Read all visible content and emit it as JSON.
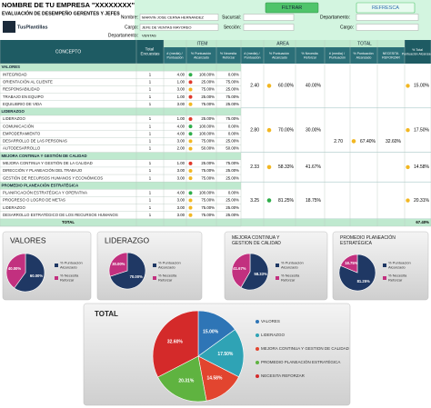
{
  "header": {
    "company": "NOMBRE DE TU EMPRESA \"XXXXXXXX\"",
    "subtitle": "EVALUACIÓN DE DESEMPEÑO GERENTES Y JEFES",
    "logo": "TusPlantillas"
  },
  "form": {
    "name_label": "Nombre:",
    "name": "MARVIN JOSE CERNA HERNANDEZ",
    "branch_label": "Sucursal:",
    "dept_label": "Departamento:",
    "position_label": "Cargo:",
    "position": "JEFE DE VENTAS MAYOREO",
    "section_label": "Sección:",
    "position_label_2": "Cargo:",
    "dept_label_2": "Departamento:",
    "dept": "VENTAS",
    "filter_button": "FILTRAR",
    "refresh_button": "REFRESCA"
  },
  "table": {
    "headers": {
      "concept": "CONCEPTO",
      "surveys": "Total Encuestas",
      "item": "ITEM",
      "area": "AREA",
      "total": "TOTAL",
      "score": "# (media) / Puntuación",
      "pct": "% Puntuación Alcanzado",
      "reinforce": "% Necesita Reforzar",
      "total_reinforce": "NECESITA REFORZAR",
      "total_pct": "% Total Puntuación Alcanzado"
    },
    "groups": [
      {
        "name": "VALORES",
        "area": {
          "score": "2.40",
          "pct": "60.00%",
          "reinforce": "40.00%"
        },
        "total_pct": "15.00%",
        "items": [
          {
            "concept": "INTEGRIDAD",
            "surveys": "1",
            "score": "4.00",
            "pct": "100.00%",
            "reinforce": "0.00%"
          },
          {
            "concept": "ORIENTACIÓN AL CLIENTE",
            "surveys": "1",
            "score": "1.00",
            "pct": "25.00%",
            "reinforce": "75.00%"
          },
          {
            "concept": "RESPONSABILIDAD",
            "surveys": "1",
            "score": "3.00",
            "pct": "75.00%",
            "reinforce": "25.00%"
          },
          {
            "concept": "TRABAJO EN EQUIPO",
            "surveys": "1",
            "score": "1.00",
            "pct": "25.00%",
            "reinforce": "75.00%"
          },
          {
            "concept": "EQUILIBRIO DE VIDA",
            "surveys": "1",
            "score": "3.00",
            "pct": "75.00%",
            "reinforce": "25.00%"
          }
        ]
      },
      {
        "name": "LIDERAZGO",
        "area": {
          "score": "2.80",
          "pct": "70.00%",
          "reinforce": "30.00%"
        },
        "total_pct": "17.50%",
        "items": [
          {
            "concept": "LIDERAZGO",
            "surveys": "1",
            "score": "1.00",
            "pct": "25.00%",
            "reinforce": "75.00%"
          },
          {
            "concept": "COMUNICACIÓN",
            "surveys": "1",
            "score": "4.00",
            "pct": "100.00%",
            "reinforce": "0.00%"
          },
          {
            "concept": "EMPODERAMIENTO",
            "surveys": "1",
            "score": "4.00",
            "pct": "100.00%",
            "reinforce": "0.00%"
          },
          {
            "concept": "DESARROLLO DE LAS PERSONAS",
            "surveys": "1",
            "score": "3.00",
            "pct": "75.00%",
            "reinforce": "25.00%"
          },
          {
            "concept": "AUTODESARROLLO",
            "surveys": "1",
            "score": "2.00",
            "pct": "50.00%",
            "reinforce": "50.00%"
          }
        ]
      },
      {
        "name": "MEJORA CONTINUA Y GESTIÓN DE CALIDAD",
        "area": {
          "score": "2.33",
          "pct": "58.33%",
          "reinforce": "41.67%"
        },
        "total_pct": "14.58%",
        "items": [
          {
            "concept": "MEJORA CONTINUA Y GESTIÓN DE LA CALIDAD",
            "surveys": "1",
            "score": "1.00",
            "pct": "25.00%",
            "reinforce": "75.00%"
          },
          {
            "concept": "DIRECCIÓN Y PLANEACIÓN DEL TRABAJO",
            "surveys": "1",
            "score": "3.00",
            "pct": "75.00%",
            "reinforce": "25.00%"
          },
          {
            "concept": "GESTIÓN DE RECURSOS HUMANOS Y ECONÓMICOS",
            "surveys": "1",
            "score": "3.00",
            "pct": "75.00%",
            "reinforce": "25.00%"
          }
        ]
      },
      {
        "name": "PROMEDIO PLANEACIÓN ESTRATÉGICA",
        "area": {
          "score": "3.25",
          "pct": "81.25%",
          "reinforce": "18.75%"
        },
        "total_pct": "20.31%",
        "items": [
          {
            "concept": "PLANIFICACIÓN ESTRATÉGICA Y OPERATIVA",
            "surveys": "1",
            "score": "4.00",
            "pct": "100.00%",
            "reinforce": "0.00%"
          },
          {
            "concept": "PROGRESO O LOGRO DE METAS",
            "surveys": "1",
            "score": "3.00",
            "pct": "75.00%",
            "reinforce": "25.00%"
          },
          {
            "concept": "LIDERAZGO",
            "surveys": "1",
            "score": "3.00",
            "pct": "75.00%",
            "reinforce": "25.00%"
          },
          {
            "concept": "DESARROLLO ESTRATÉGICO DE LOS RECURSOS HUMANOS",
            "surveys": "1",
            "score": "3.00",
            "pct": "75.00%",
            "reinforce": "25.00%"
          }
        ]
      }
    ],
    "overall": {
      "score": "2.70",
      "pct": "67.40%",
      "reinforce": "32.60%"
    },
    "total_row": {
      "label": "TOTAL",
      "value": "67.40%"
    }
  },
  "chart_data": [
    {
      "type": "pie",
      "title": "VALORES",
      "categories": [
        "% Puntuación Alcanzado",
        "% Necesita Reforzar"
      ],
      "values": [
        60,
        40
      ],
      "value_labels": [
        "60.00%",
        "40.00%"
      ],
      "colors": [
        "#1f3864",
        "#c2307f"
      ]
    },
    {
      "type": "pie",
      "title": "LIDERAZGO",
      "categories": [
        "% Puntuación Alcanzado",
        "% Necesita Reforzar"
      ],
      "values": [
        70,
        30
      ],
      "value_labels": [
        "70.00%",
        "30.00%"
      ],
      "colors": [
        "#1f3864",
        "#c2307f"
      ]
    },
    {
      "type": "pie",
      "title": "MEJORA CONTINUA Y GESTION DE CALIDAD",
      "categories": [
        "% Puntuación Alcanzado",
        "% Necesita Reforzar"
      ],
      "values": [
        58.33,
        41.67
      ],
      "value_labels": [
        "58.33%",
        "41.67%"
      ],
      "colors": [
        "#1f3864",
        "#c2307f"
      ]
    },
    {
      "type": "pie",
      "title": "PROMEDIO PLANEACIÓN ESTRATÉGICA",
      "categories": [
        "% Puntuación Alcanzado",
        "% Necesita Reforzar"
      ],
      "values": [
        81.25,
        18.75
      ],
      "value_labels": [
        "81.25%",
        "18.75%"
      ],
      "colors": [
        "#1f3864",
        "#c2307f"
      ]
    },
    {
      "type": "pie",
      "title": "TOTAL",
      "categories": [
        "VALORES",
        "LIDERAZGO",
        "MEJORA CONTINUA Y GESTION DE CALIDAD",
        "PROMEDIO PLANEACIÓN ESTRATÉGICA",
        "NECESITA REFORZAR"
      ],
      "values": [
        15.0,
        17.5,
        14.58,
        20.31,
        32.6
      ],
      "value_labels": [
        "15.00%",
        "17.50%",
        "14.58%",
        "20.31%",
        "32.60%"
      ],
      "colors": [
        "#2e75b6",
        "#2fa3b5",
        "#e2452f",
        "#5fb340",
        "#d42a2a"
      ]
    }
  ]
}
